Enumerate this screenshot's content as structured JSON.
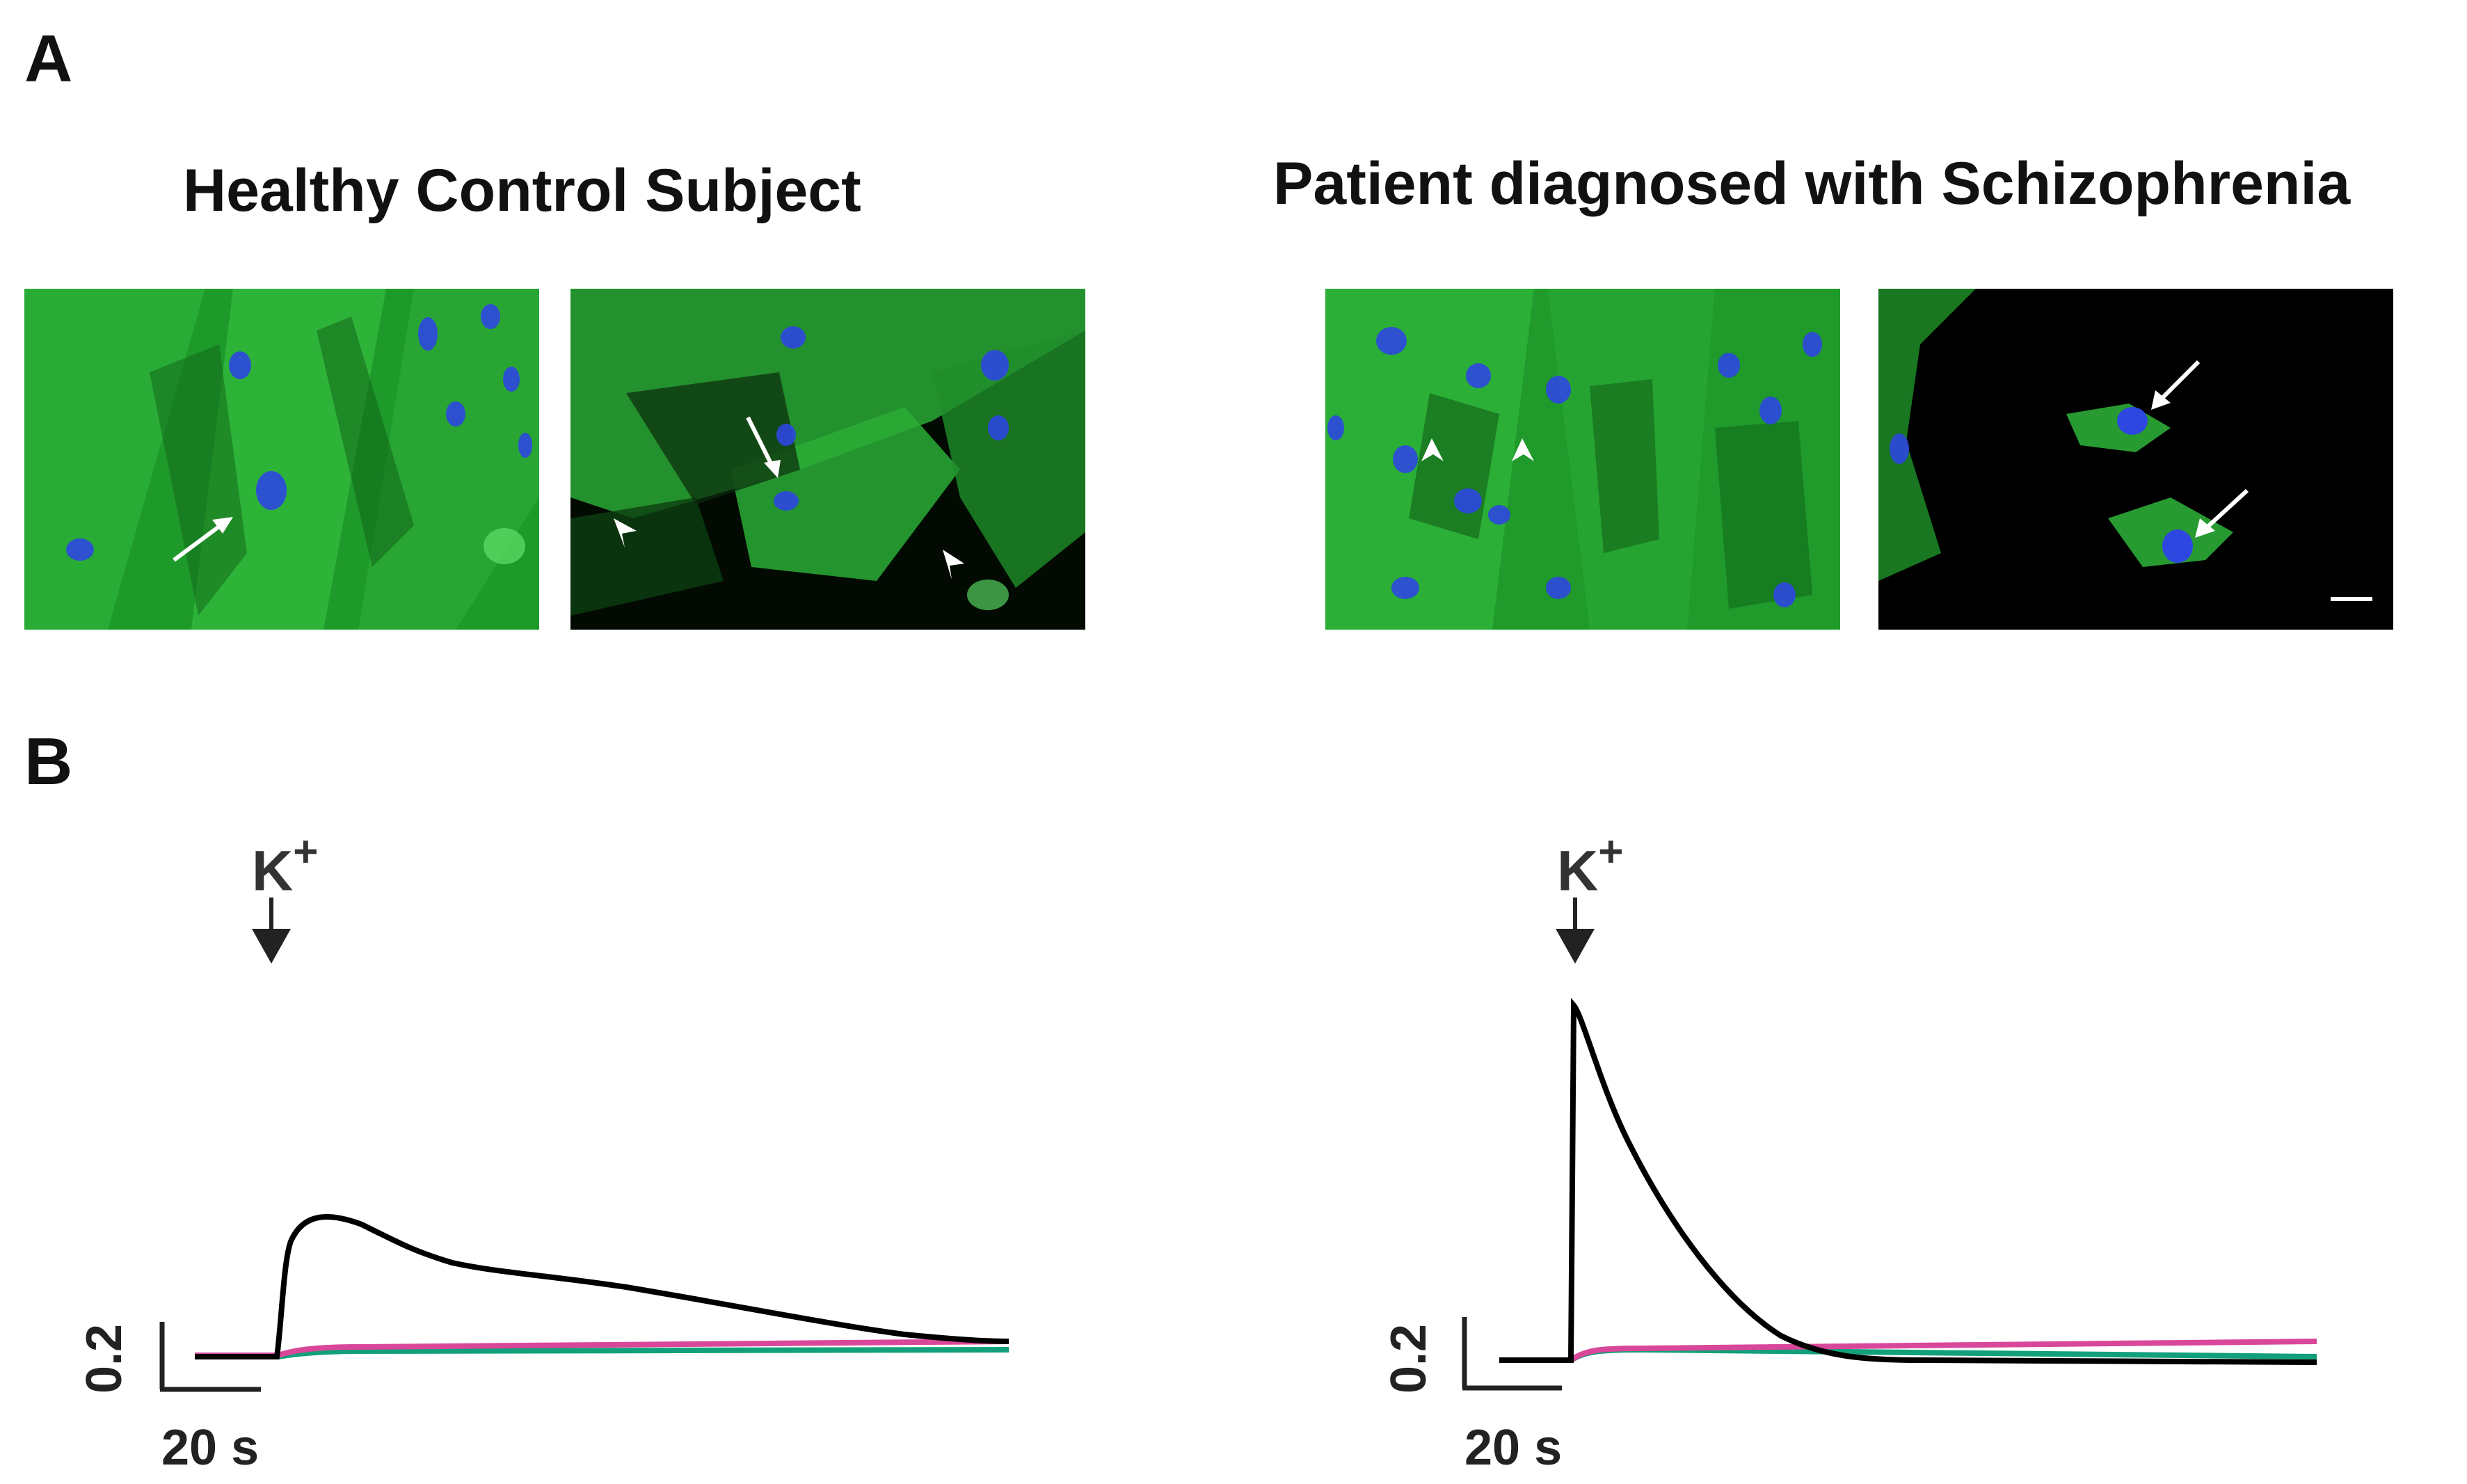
{
  "panel_a_label": "A",
  "panel_b_label": "B",
  "titles": {
    "control": "Healthy Control Subject",
    "patient": "Patient diagnosed with Schizophrenia"
  },
  "stimulus_label": "K",
  "stimulus_superscript": "+",
  "scale_bar": {
    "y_label": "0.2",
    "x_label": "20 s"
  },
  "colors": {
    "micrograph_background": "#000000",
    "cytoplasm_green": "#2fb53a",
    "nucleus_blue": "#2b3fd6",
    "trace_black": "#000000",
    "trace_magenta": "#d9479a",
    "trace_teal": "#12a07a"
  },
  "micrograph_icons": [
    "arrow-icon",
    "arrowhead-icon",
    "scale-bar"
  ]
}
